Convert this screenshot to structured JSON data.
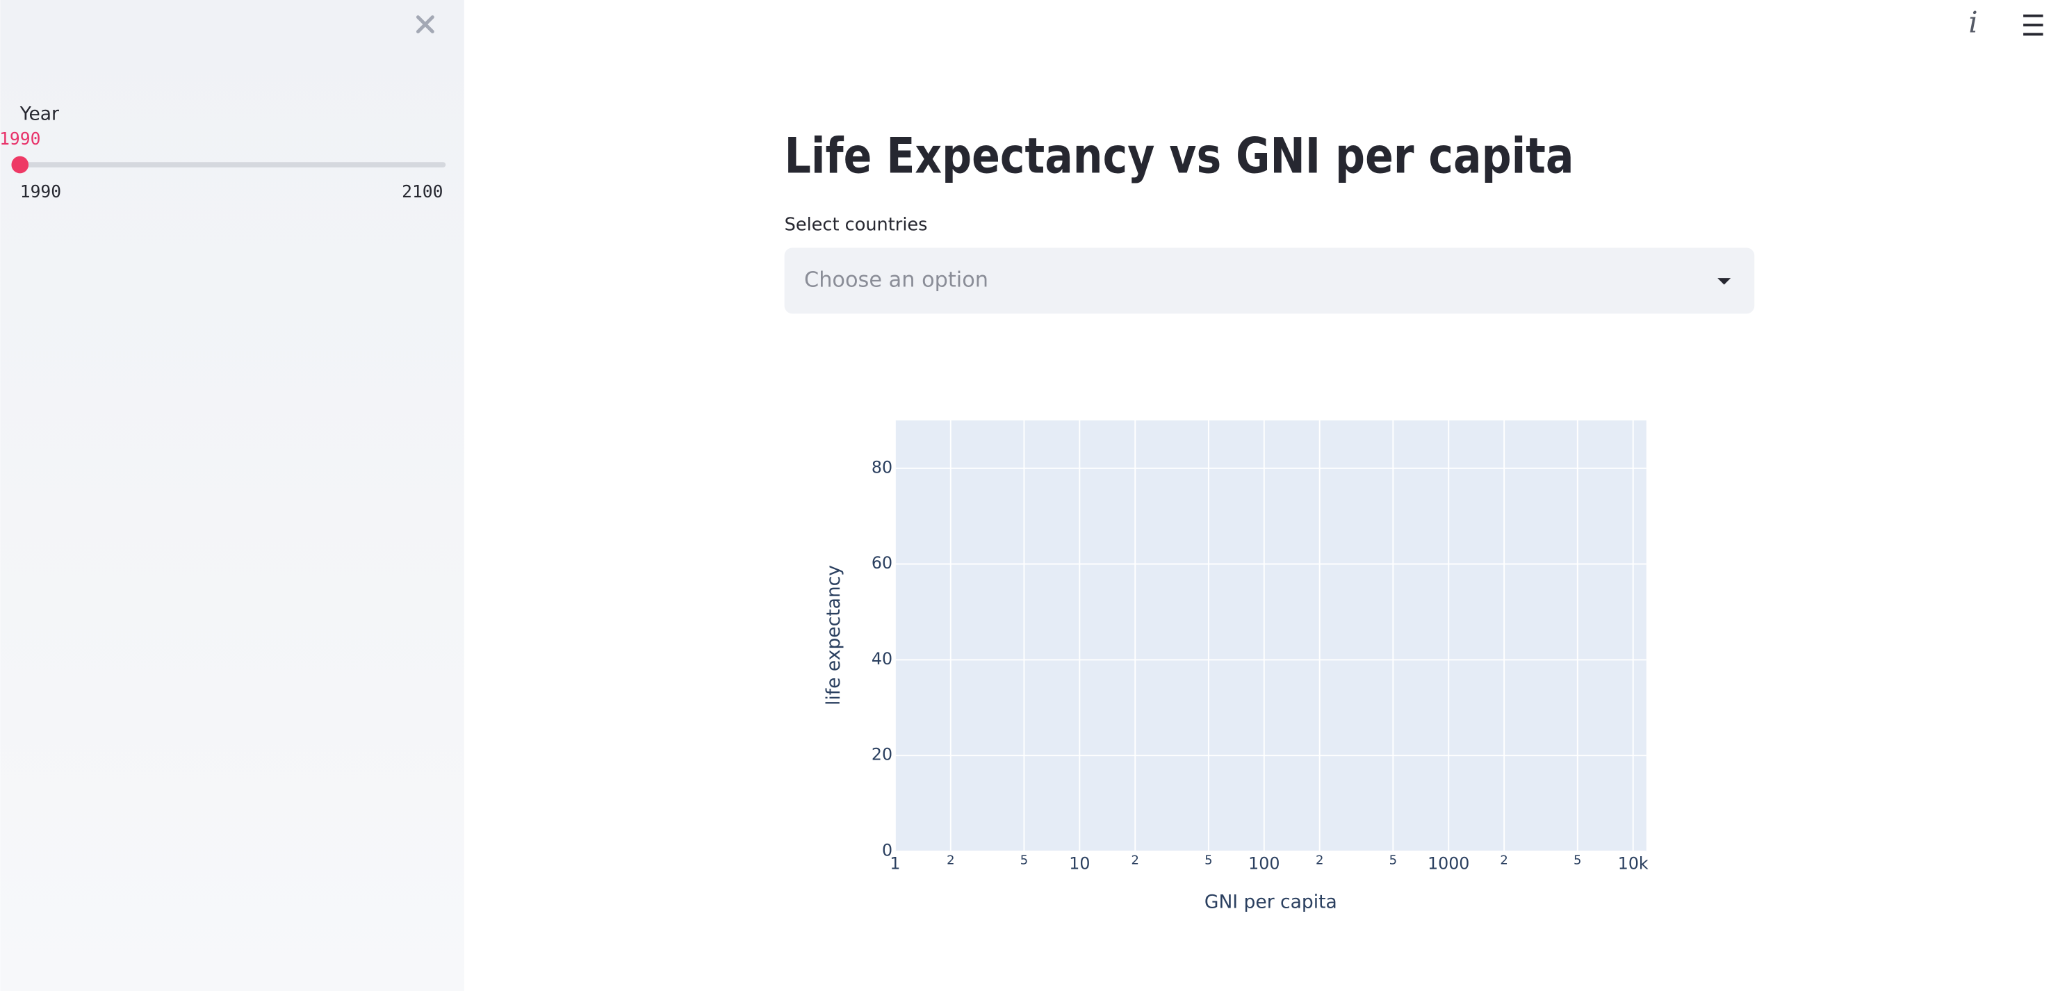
{
  "sidebar": {
    "slider": {
      "label": "Year",
      "value": 1990,
      "min": 1990,
      "max": 2100
    }
  },
  "header": {
    "title": "Life Expectancy vs GNI per capita"
  },
  "select": {
    "label": "Select countries",
    "placeholder": "Choose an option"
  },
  "chart_data": {
    "type": "scatter",
    "xlabel": "GNI per capita",
    "ylabel": "life expectancy",
    "xscale": "log",
    "xlim": [
      1,
      11800
    ],
    "ylim": [
      0,
      90
    ],
    "xticks": [
      1,
      2,
      5,
      10,
      {
        "value": 20,
        "label": "2"
      },
      {
        "value": 50,
        "label": "5"
      },
      100,
      {
        "value": 200,
        "label": "2"
      },
      {
        "value": 500,
        "label": "5"
      },
      1000,
      {
        "value": 2000,
        "label": "2"
      },
      {
        "value": 5000,
        "label": "5"
      },
      {
        "value": 10000,
        "label": "10k"
      }
    ],
    "yticks": [
      0,
      20,
      40,
      60,
      80
    ],
    "grid": true,
    "plot_background": "#e5ecf6"
  }
}
